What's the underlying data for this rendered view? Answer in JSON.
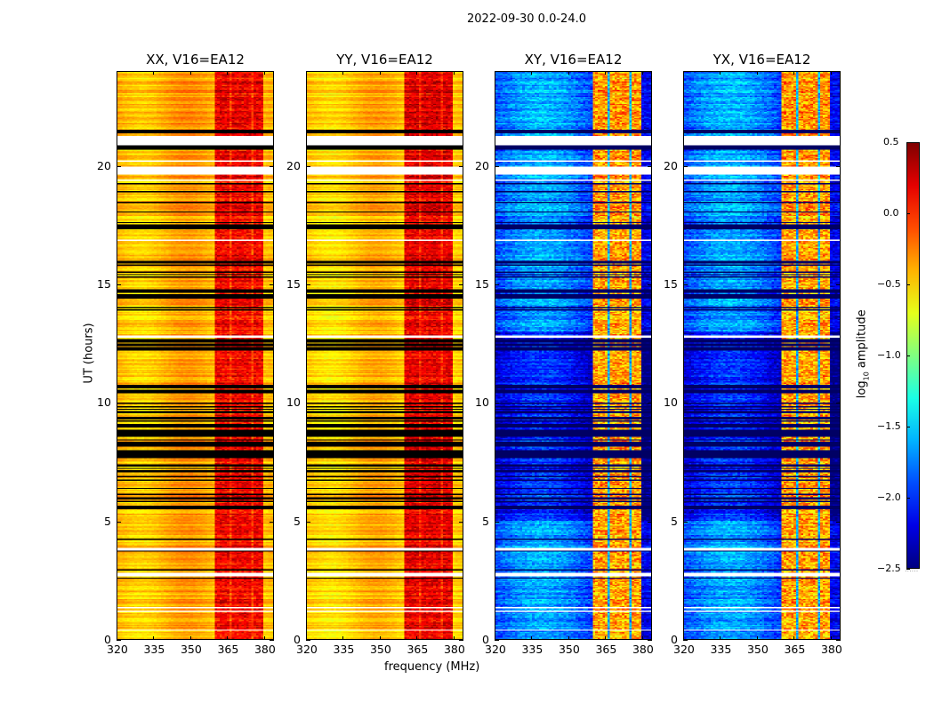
{
  "chart_data": {
    "type": "heatmap",
    "title": "2022-09-30 0.0-24.0",
    "xlabel": "frequency (MHz)",
    "ylabel": "UT (hours)",
    "xlim": [
      320,
      384
    ],
    "ylim": [
      0,
      24
    ],
    "xticks": [
      320,
      335,
      350,
      365,
      380
    ],
    "yticks": [
      0,
      5,
      10,
      15,
      20
    ],
    "colormap": "jet",
    "panels": [
      {
        "title": "XX, V16=EA12",
        "kind": "parallel",
        "low_band_level": -0.4,
        "high_band_level": 0.15
      },
      {
        "title": "YY, V16=EA12",
        "kind": "parallel",
        "low_band_level": -0.45,
        "high_band_level": 0.2
      },
      {
        "title": "XY, V16=EA12",
        "kind": "cross",
        "low_band_level": -1.9,
        "high_band_level": -0.4
      },
      {
        "title": "YX, V16=EA12",
        "kind": "cross",
        "low_band_level": -1.9,
        "high_band_level": -0.4
      }
    ],
    "strong_band_mhz": [
      [
        360.4,
        366.0
      ],
      [
        366.6,
        370.8
      ],
      [
        371.2,
        375.2
      ],
      [
        375.6,
        379.6
      ]
    ],
    "flagged_blank_hours": [
      [
        20.9,
        21.3
      ],
      [
        19.65,
        20.0
      ],
      [
        12.75,
        12.85
      ],
      [
        2.65,
        2.8
      ],
      [
        0.35,
        0.4
      ],
      [
        1.3,
        1.35
      ]
    ],
    "flagged_dense_hours": [
      [
        21.4,
        21.8
      ],
      [
        20.7,
        20.9
      ],
      [
        18.9,
        19.5
      ],
      [
        17.2,
        17.9
      ],
      [
        15.2,
        16.0
      ],
      [
        13.8,
        14.9
      ],
      [
        12.2,
        12.7
      ],
      [
        10.2,
        11.0
      ],
      [
        7.6,
        10.0
      ],
      [
        5.5,
        7.4
      ],
      [
        2.8,
        3.0
      ]
    ],
    "colorbar": {
      "label": "log10 amplitude",
      "range": [
        -2.5,
        0.5
      ],
      "ticks": [
        "0.5",
        "0.0",
        "−0.5",
        "−1.0",
        "−1.5",
        "−2.0",
        "−2.5"
      ]
    }
  }
}
